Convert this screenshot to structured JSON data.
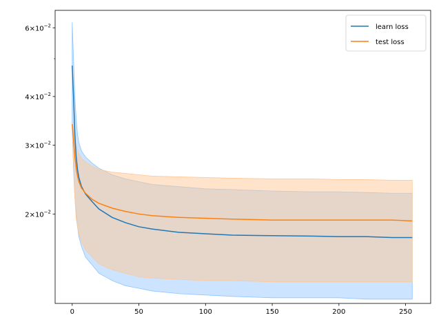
{
  "chart_data": {
    "type": "line",
    "title": "",
    "xlabel": "",
    "ylabel": "",
    "xlim": [
      -12.8,
      268.8
    ],
    "ylim": [
      0.0118,
      0.0665
    ],
    "y_scale": "log",
    "grid": false,
    "legend_position": "upper right",
    "x_ticks": [
      0,
      50,
      100,
      150,
      200,
      250
    ],
    "x_tick_labels": [
      "0",
      "50",
      "100",
      "150",
      "200",
      "250"
    ],
    "y_major_ticks": [
      0.02,
      0.03,
      0.04,
      0.06
    ],
    "y_minor_ticks": [
      0.05
    ],
    "y_tick_mantissas": [
      "2",
      "3",
      "4",
      "6"
    ],
    "y_tick_base": "10",
    "y_tick_exponent": "−2",
    "series": [
      {
        "name": "learn loss",
        "color": "#1f77b4",
        "band_color": "#8fc4ff",
        "x": [
          0,
          1,
          2,
          3,
          4,
          5,
          7,
          10,
          15,
          20,
          30,
          40,
          50,
          60,
          80,
          100,
          120,
          150,
          180,
          200,
          220,
          240,
          255
        ],
        "mean": [
          0.048,
          0.04,
          0.032,
          0.028,
          0.026,
          0.0248,
          0.0235,
          0.0225,
          0.0215,
          0.0206,
          0.0196,
          0.019,
          0.01855,
          0.0183,
          0.01795,
          0.0178,
          0.01765,
          0.0176,
          0.01755,
          0.0175,
          0.0175,
          0.0174,
          0.0174
        ],
        "upper": [
          0.062,
          0.05,
          0.04,
          0.035,
          0.032,
          0.0305,
          0.029,
          0.028,
          0.027,
          0.0262,
          0.0252,
          0.0246,
          0.0242,
          0.0238,
          0.0235,
          0.0232,
          0.0231,
          0.0229,
          0.0228,
          0.0228,
          0.0227,
          0.0226,
          0.0226
        ],
        "lower": [
          0.033,
          0.026,
          0.022,
          0.02,
          0.0185,
          0.0175,
          0.0165,
          0.0155,
          0.0148,
          0.0141,
          0.0135,
          0.0131,
          0.0129,
          0.0127,
          0.0125,
          0.0124,
          0.0123,
          0.0122,
          0.0122,
          0.0122,
          0.0121,
          0.0121,
          0.0121
        ]
      },
      {
        "name": "test loss",
        "color": "#ff7f0e",
        "band_color": "#ffc896",
        "x": [
          0,
          1,
          2,
          3,
          4,
          5,
          7,
          10,
          15,
          20,
          30,
          40,
          50,
          60,
          80,
          100,
          120,
          150,
          180,
          200,
          220,
          240,
          255
        ],
        "mean": [
          0.034,
          0.031,
          0.028,
          0.0262,
          0.025,
          0.0242,
          0.0233,
          0.0226,
          0.0218,
          0.0213,
          0.0207,
          0.0203,
          0.02,
          0.0198,
          0.0196,
          0.0195,
          0.0194,
          0.0193,
          0.0193,
          0.0193,
          0.0193,
          0.0193,
          0.0192
        ],
        "upper": [
          0.034,
          0.033,
          0.031,
          0.0298,
          0.029,
          0.0285,
          0.0278,
          0.0272,
          0.0265,
          0.026,
          0.0256,
          0.0254,
          0.0252,
          0.025,
          0.0249,
          0.0248,
          0.0247,
          0.0246,
          0.0246,
          0.0245,
          0.0245,
          0.0244,
          0.0244
        ],
        "lower": [
          0.034,
          0.027,
          0.022,
          0.0195,
          0.0185,
          0.0178,
          0.017,
          0.0162,
          0.0155,
          0.0149,
          0.0144,
          0.0141,
          0.0138,
          0.0137,
          0.0136,
          0.0135,
          0.0135,
          0.0134,
          0.0134,
          0.0134,
          0.0134,
          0.0134,
          0.0134
        ]
      }
    ]
  }
}
